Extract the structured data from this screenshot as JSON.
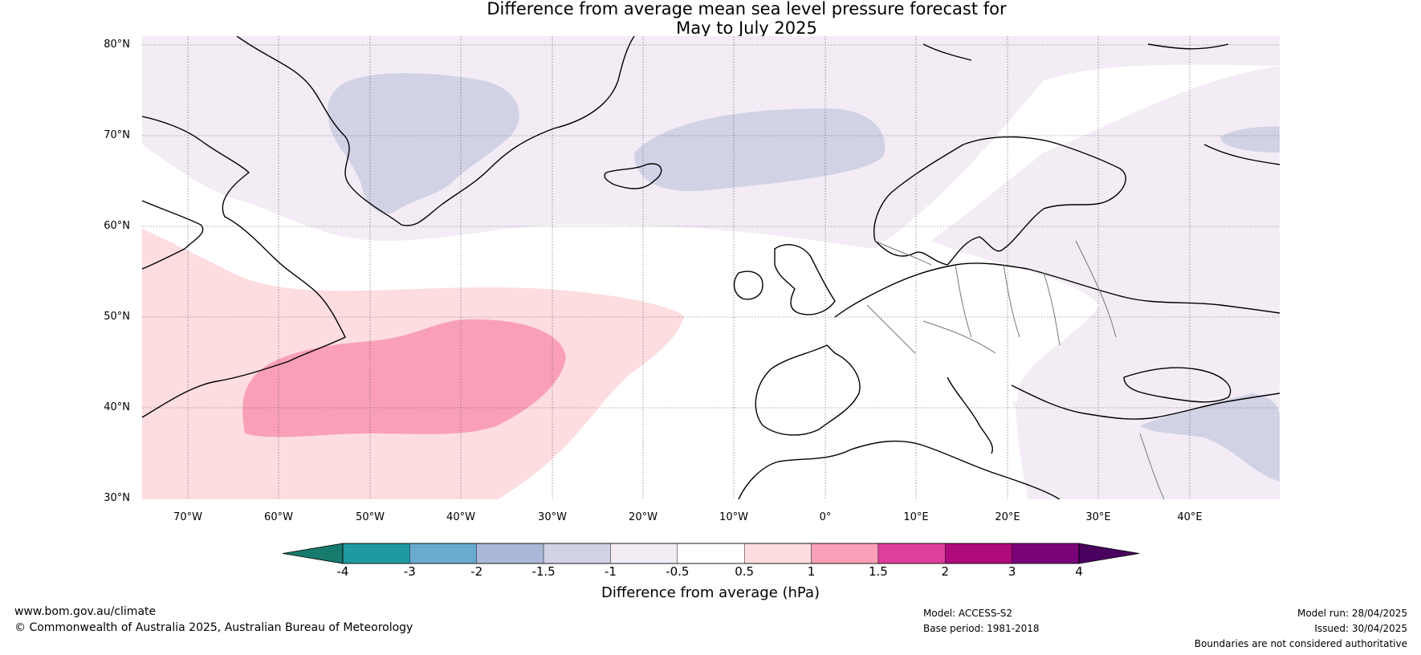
{
  "title": {
    "line1": "Difference from average mean sea level pressure forecast for",
    "line2": "May to July 2025"
  },
  "lat_labels": [
    "80°N",
    "70°N",
    "60°N",
    "50°N",
    "40°N",
    "30°N"
  ],
  "lon_labels": [
    "70°W",
    "60°W",
    "50°W",
    "40°W",
    "30°W",
    "20°W",
    "10°W",
    "0°",
    "10°E",
    "20°E",
    "30°E",
    "40°E"
  ],
  "colorbar": {
    "ticks": [
      "-4",
      "-3",
      "-2",
      "-1.5",
      "-1",
      "-0.5",
      "0.5",
      "1",
      "1.5",
      "2",
      "3",
      "4"
    ],
    "colors": [
      "#167a6c",
      "#1f9aa1",
      "#6aaad0",
      "#aab7d6",
      "#d2d2e6",
      "#f3ecf5",
      "#ffffff",
      "#fddddf",
      "#f9a0b8",
      "#de3f9c",
      "#ae0a7d",
      "#79047a",
      "#4a005f"
    ],
    "label": "Difference from average (hPa)"
  },
  "footer": {
    "url": "www.bom.gov.au/climate",
    "copyright": "© Commonwealth of Australia 2025, Australian Bureau of Meteorology",
    "model": "Model: ACCESS-S2",
    "base_period": "Base period: 1981-2018",
    "model_run": "Model run: 28/04/2025",
    "issued": "Issued: 30/04/2025",
    "disclaimer": "Boundaries are not considered authoritative"
  }
}
